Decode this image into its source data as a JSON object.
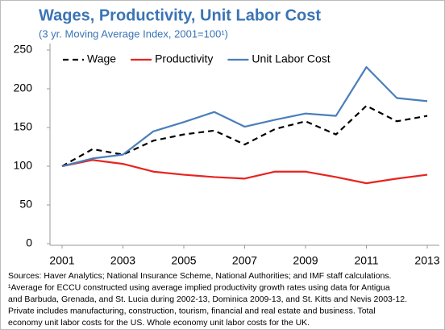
{
  "chart_data": {
    "type": "line",
    "title": "Wages, Productivity, Unit Labor Cost",
    "subtitle": "(3 yr. Moving Average Index, 2001=100¹)",
    "x": [
      2001,
      2002,
      2003,
      2004,
      2005,
      2006,
      2007,
      2008,
      2009,
      2010,
      2011,
      2012,
      2013
    ],
    "series": [
      {
        "name": "Wage",
        "color": "#000000",
        "dash": true,
        "values": [
          100,
          122,
          115,
          133,
          141,
          146,
          128,
          148,
          158,
          141,
          178,
          158,
          165
        ]
      },
      {
        "name": "Productivity",
        "color": "#e8231e",
        "dash": false,
        "values": [
          100,
          108,
          103,
          93,
          89,
          86,
          84,
          93,
          93,
          86,
          78,
          84,
          89
        ]
      },
      {
        "name": "Unit Labor Cost",
        "color": "#4a7ebb",
        "dash": false,
        "values": [
          100,
          110,
          115,
          145,
          157,
          170,
          151,
          160,
          168,
          165,
          228,
          188,
          184
        ]
      }
    ],
    "xlim": [
      2001,
      2013
    ],
    "xticks": [
      2001,
      2003,
      2005,
      2007,
      2009,
      2011,
      2013
    ],
    "ylim": [
      0,
      250
    ],
    "yticks": [
      0,
      50,
      100,
      150,
      200,
      250
    ],
    "legend": "upper left",
    "notes": [
      "Sources: Haver Analytics; National Insurance Scheme, National Authorities; and IMF staff calculations.",
      "¹Average for ECCU constructed using average implied productivity growth rates using data for Antigua",
      "and Barbuda, Grenada, and St. Lucia during 2002-13, Dominica 2009-13, and St. Kitts and Nevis 2003-12.",
      "Private includes manufacturing, construction, tourism, financial and real estate and business.  Total",
      "economy unit labor costs for the US. Whole economy unit labor costs for the UK."
    ]
  }
}
